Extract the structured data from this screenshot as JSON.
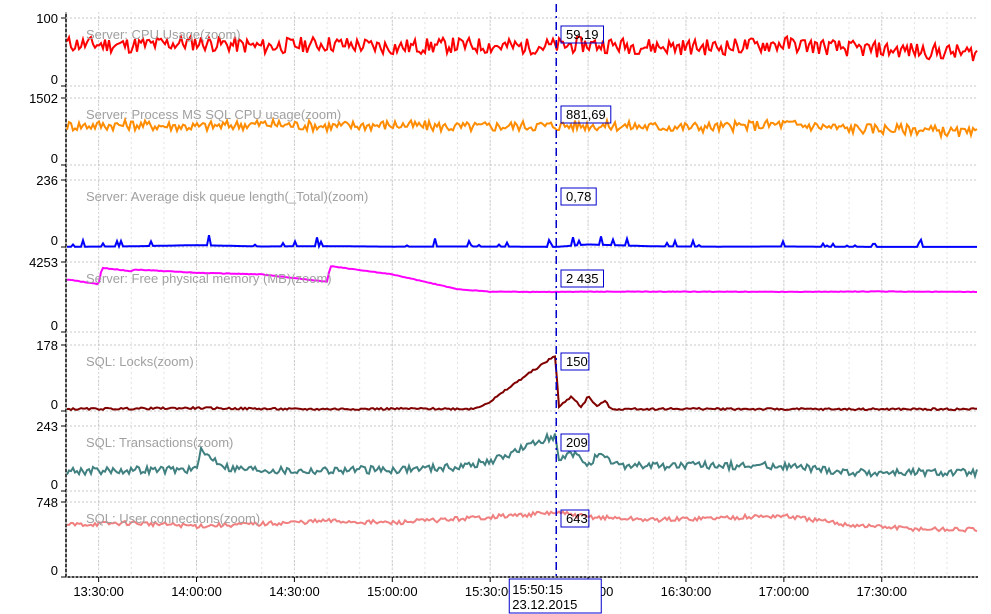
{
  "chart_data": {
    "type": "line",
    "cursor": {
      "time": "15:50:15",
      "date": "23.12.2015"
    },
    "x_ticks": [
      "13:30:00",
      "14:00:00",
      "14:30:00",
      "15:00:00",
      "15:30:00",
      "16:00:00",
      "16:30:00",
      "17:00:00",
      "17:30:00"
    ],
    "x_range": [
      "13:20:00",
      "17:59:30"
    ],
    "grid": true,
    "panels": [
      {
        "title": "Server: CPU Usage(zoom)",
        "y_max_label": "100",
        "y_min_label": "0",
        "ylim": [
          0,
          100
        ],
        "color": "#ff0000",
        "cursor_value": "59,19",
        "x": [
          "13:20",
          "13:40",
          "14:00",
          "14:20",
          "14:40",
          "15:00",
          "15:20",
          "15:40",
          "15:50",
          "16:00",
          "16:20",
          "16:40",
          "17:00",
          "17:20",
          "17:40",
          "18:00"
        ],
        "values": [
          62,
          60,
          64,
          58,
          62,
          57,
          60,
          58,
          59,
          61,
          58,
          57,
          62,
          55,
          52,
          48
        ]
      },
      {
        "title": "Server: Process MS SQL CPU usage(zoom)",
        "y_max_label": "1502",
        "y_min_label": "0",
        "ylim": [
          0,
          1502
        ],
        "color": "#ff8c00",
        "cursor_value": "881,69",
        "x": [
          "13:20",
          "13:40",
          "14:00",
          "14:20",
          "14:40",
          "15:00",
          "15:20",
          "15:40",
          "15:50",
          "16:00",
          "16:20",
          "16:40",
          "17:00",
          "17:20",
          "17:40",
          "18:00"
        ],
        "values": [
          880,
          900,
          860,
          920,
          870,
          900,
          850,
          880,
          882,
          890,
          860,
          850,
          920,
          820,
          800,
          700
        ]
      },
      {
        "title": "Server: Average disk queue length(_Total)(zoom)",
        "y_max_label": "236",
        "y_min_label": "0",
        "ylim": [
          0,
          236
        ],
        "color": "#0000ff",
        "cursor_value": "0,78",
        "x": [
          "13:20",
          "13:40",
          "14:00",
          "14:20",
          "14:40",
          "15:00",
          "15:20",
          "15:40",
          "15:50",
          "16:00",
          "16:20",
          "16:40",
          "17:00",
          "17:20",
          "17:40",
          "18:00"
        ],
        "values": [
          2,
          8,
          22,
          6,
          10,
          4,
          6,
          4,
          0.78,
          30,
          8,
          4,
          6,
          2,
          1,
          1
        ]
      },
      {
        "title": "Server: Free physical memory (MB)(zoom)",
        "y_max_label": "4253",
        "y_min_label": "0",
        "ylim": [
          0,
          4253
        ],
        "color": "#ff00ff",
        "cursor_value": "2 435",
        "x": [
          "13:20",
          "13:30",
          "13:31",
          "13:40",
          "13:41",
          "14:00",
          "14:20",
          "14:40",
          "14:41",
          "15:00",
          "15:20",
          "15:30",
          "15:50",
          "16:00",
          "16:30",
          "17:00",
          "17:30",
          "18:00"
        ],
        "values": [
          3200,
          2900,
          3900,
          3700,
          3800,
          3600,
          3500,
          3050,
          4000,
          3500,
          2600,
          2450,
          2435,
          2450,
          2450,
          2440,
          2460,
          2430
        ]
      },
      {
        "title": "SQL: Locks(zoom)",
        "y_max_label": "178",
        "y_min_label": "0",
        "ylim": [
          0,
          178
        ],
        "color": "#800000",
        "cursor_value": "150",
        "x": [
          "13:20",
          "14:00",
          "14:30",
          "15:00",
          "15:25",
          "15:30",
          "15:40",
          "15:50",
          "15:51",
          "15:55",
          "15:58",
          "16:00",
          "16:03",
          "16:05",
          "16:07",
          "16:30",
          "17:00",
          "18:00"
        ],
        "values": [
          5,
          8,
          5,
          6,
          6,
          25,
          90,
          150,
          10,
          40,
          10,
          40,
          10,
          30,
          5,
          6,
          5,
          5
        ]
      },
      {
        "title": "SQL: Transactions(zoom)",
        "y_max_label": "243",
        "y_min_label": "0",
        "ylim": [
          0,
          243
        ],
        "color": "#408080",
        "cursor_value": "209",
        "x": [
          "13:20",
          "14:00",
          "14:01",
          "14:10",
          "14:30",
          "15:00",
          "15:20",
          "15:30",
          "15:40",
          "15:50",
          "15:51",
          "15:55",
          "16:00",
          "16:03",
          "16:10",
          "16:30",
          "17:00",
          "17:20",
          "18:00"
        ],
        "values": [
          75,
          80,
          150,
          85,
          75,
          80,
          90,
          110,
          160,
          209,
          110,
          140,
          100,
          130,
          95,
          95,
          95,
          70,
          68
        ]
      },
      {
        "title": "SQL: User connections(zoom)",
        "y_max_label": "748",
        "y_min_label": "0",
        "ylim": [
          0,
          748
        ],
        "color": "#f08080",
        "cursor_value": "643",
        "x": [
          "13:20",
          "13:40",
          "14:00",
          "14:20",
          "14:40",
          "15:00",
          "15:20",
          "15:40",
          "15:50",
          "16:00",
          "16:20",
          "16:40",
          "17:00",
          "17:20",
          "17:40",
          "18:00"
        ],
        "values": [
          520,
          540,
          510,
          530,
          560,
          540,
          580,
          620,
          643,
          600,
          570,
          590,
          610,
          520,
          480,
          470
        ]
      }
    ]
  }
}
